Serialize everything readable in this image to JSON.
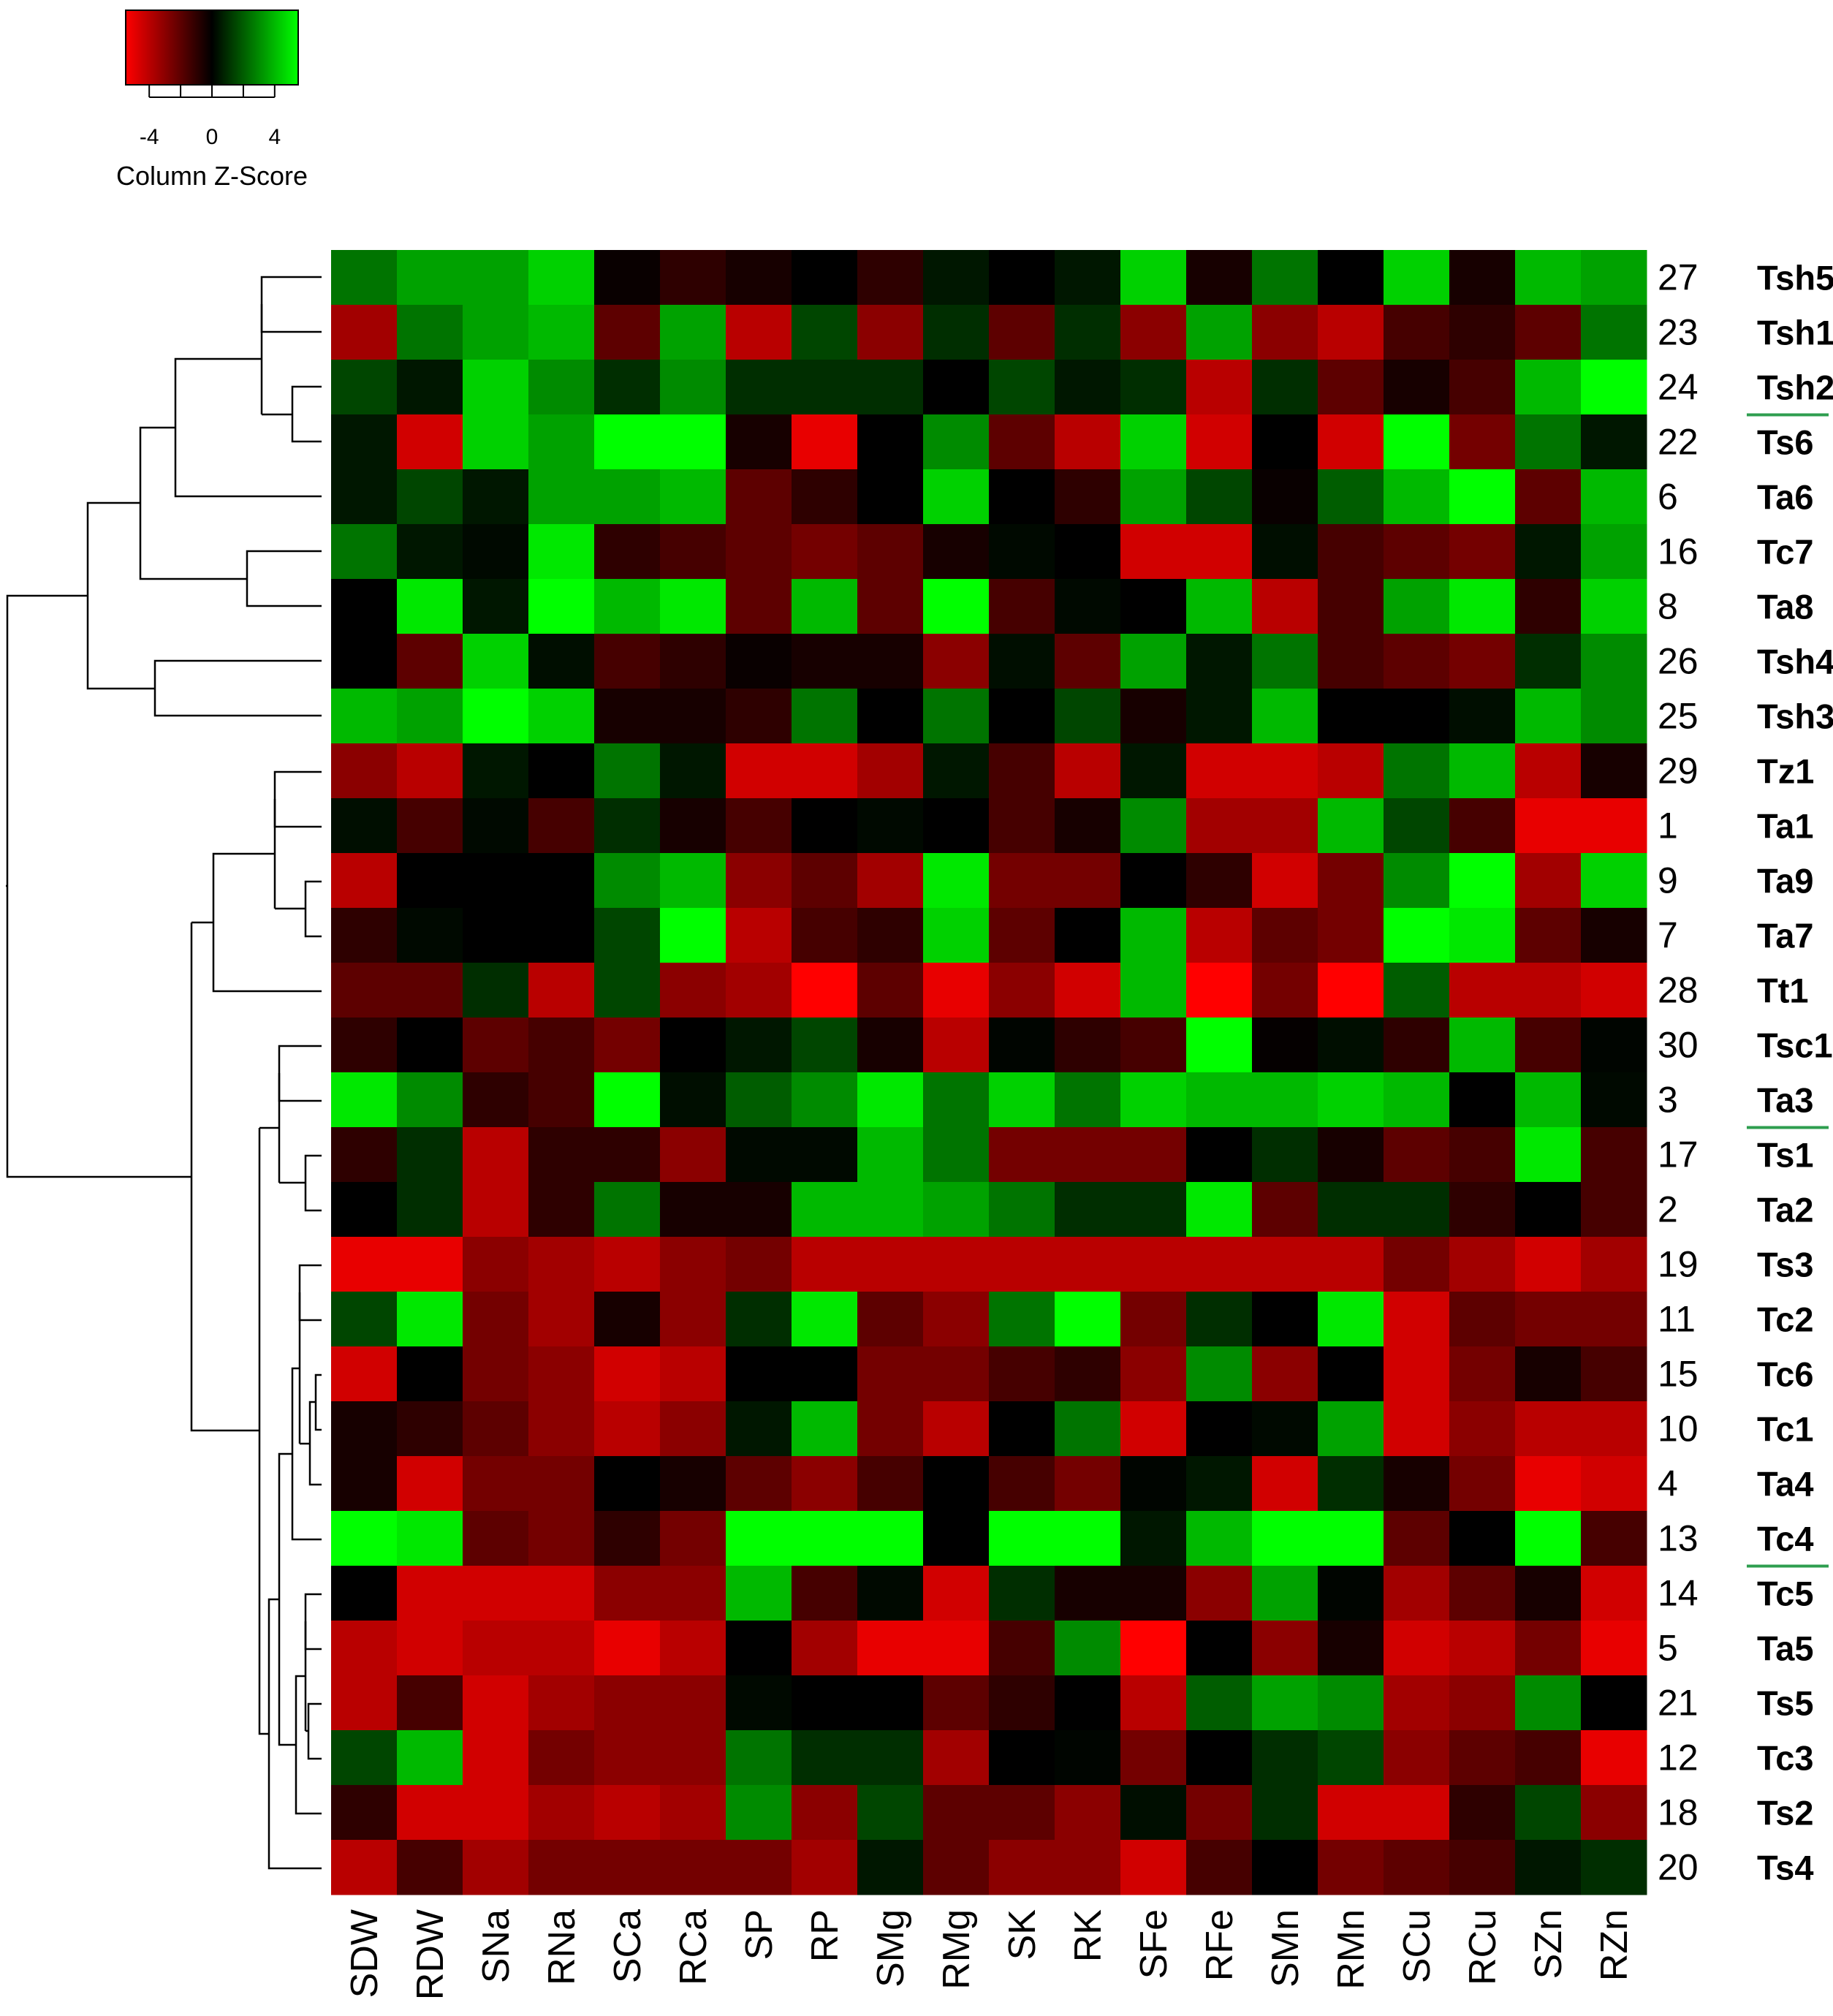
{
  "chart_data": {
    "type": "heatmap",
    "color_key": {
      "title": "Column Z-Score",
      "ticks": [
        "-4",
        "0",
        "4"
      ],
      "tick_values": [
        -4,
        0,
        4
      ],
      "range": [
        -5.5,
        5.5
      ],
      "colors": {
        "low": "#ff0000",
        "mid": "#000000",
        "high": "#00ff00"
      }
    },
    "columns": [
      "SDW",
      "RDW",
      "SNa",
      "RNa",
      "SCa",
      "RCa",
      "SP",
      "RP",
      "SMg",
      "RMg",
      "SK",
      "RK",
      "SFe",
      "RFe",
      "SMn",
      "RMn",
      "SCu",
      "RCu",
      "SZn",
      "RZn"
    ],
    "rows": [
      {
        "num": "27",
        "name": "Tsh5",
        "underline": false
      },
      {
        "num": "23",
        "name": "Tsh1",
        "underline": false
      },
      {
        "num": "24",
        "name": "Tsh2",
        "underline": true
      },
      {
        "num": "22",
        "name": "Ts6",
        "underline": false
      },
      {
        "num": "6",
        "name": "Ta6",
        "underline": false
      },
      {
        "num": "16",
        "name": "Tc7",
        "underline": false
      },
      {
        "num": "8",
        "name": "Ta8",
        "underline": false
      },
      {
        "num": "26",
        "name": "Tsh4",
        "underline": false
      },
      {
        "num": "25",
        "name": "Tsh3",
        "underline": false
      },
      {
        "num": "29",
        "name": "Tz1",
        "underline": false
      },
      {
        "num": "1",
        "name": "Ta1",
        "underline": false
      },
      {
        "num": "9",
        "name": "Ta9",
        "underline": false
      },
      {
        "num": "7",
        "name": "Ta7",
        "underline": false
      },
      {
        "num": "28",
        "name": "Tt1",
        "underline": false
      },
      {
        "num": "30",
        "name": "Tsc1",
        "underline": false
      },
      {
        "num": "3",
        "name": "Ta3",
        "underline": true
      },
      {
        "num": "17",
        "name": "Ts1",
        "underline": false
      },
      {
        "num": "2",
        "name": "Ta2",
        "underline": false
      },
      {
        "num": "19",
        "name": "Ts3",
        "underline": false
      },
      {
        "num": "11",
        "name": "Tc2",
        "underline": false
      },
      {
        "num": "15",
        "name": "Tc6",
        "underline": false
      },
      {
        "num": "10",
        "name": "Tc1",
        "underline": false
      },
      {
        "num": "4",
        "name": "Ta4",
        "underline": false
      },
      {
        "num": "13",
        "name": "Tc4",
        "underline": true
      },
      {
        "num": "14",
        "name": "Tc5",
        "underline": false
      },
      {
        "num": "5",
        "name": "Ta5",
        "underline": false
      },
      {
        "num": "21",
        "name": "Ts5",
        "underline": false
      },
      {
        "num": "12",
        "name": "Tc3",
        "underline": false
      },
      {
        "num": "18",
        "name": "Ts2",
        "underline": false
      },
      {
        "num": "20",
        "name": "Ts4",
        "underline": false
      }
    ],
    "values": [
      [
        2.5,
        3.5,
        3.5,
        4.5,
        -0.2,
        -1,
        -0.5,
        0,
        -1,
        0.5,
        0,
        0.5,
        4.5,
        -0.5,
        2.5,
        0,
        4.5,
        -0.5,
        4,
        3.5
      ],
      [
        -3.5,
        2.5,
        3.5,
        4,
        -2,
        3.5,
        -4,
        1.5,
        -3,
        1,
        -2,
        1,
        -3,
        3.5,
        -3,
        -4,
        -1.5,
        -1,
        -2,
        2.5
      ],
      [
        1.5,
        0.5,
        4.5,
        3,
        1,
        3,
        1,
        1,
        1,
        0,
        1.5,
        0.5,
        1,
        -4,
        1,
        -2,
        -0.5,
        -1.5,
        4,
        6
      ],
      [
        0.5,
        -4.5,
        4.5,
        3.5,
        6.5,
        6,
        -0.5,
        -5,
        0,
        3,
        -2,
        -4,
        4.5,
        -4.5,
        0,
        -4.5,
        6,
        -2.5,
        2.5,
        0.5
      ],
      [
        0.5,
        1.5,
        0.5,
        3.5,
        3.5,
        4,
        -2,
        -1,
        0,
        4.5,
        0,
        -1,
        3.5,
        1.5,
        -0.2,
        2,
        4,
        5.5,
        -2,
        4
      ],
      [
        2.5,
        0.5,
        0.2,
        5,
        -1,
        -1.5,
        -2,
        -2.5,
        -2,
        -0.5,
        0.2,
        0,
        -4.5,
        -4.5,
        0.3,
        -1.5,
        -2,
        -2.5,
        0.5,
        3.5
      ],
      [
        0,
        5,
        0.5,
        5.5,
        4,
        5,
        -2,
        4,
        -2,
        5.5,
        -1.5,
        0.2,
        0,
        4,
        -4,
        -1.5,
        3.5,
        5,
        -1,
        4.5
      ],
      [
        0,
        -2,
        4.5,
        0.3,
        -1.5,
        -1,
        -0.2,
        -0.5,
        -0.5,
        -3,
        0.3,
        -2,
        3.5,
        0.5,
        2.5,
        -1.5,
        -2,
        -2.5,
        1,
        3
      ],
      [
        4,
        3.5,
        5.5,
        4.5,
        -0.5,
        -0.5,
        -1,
        2.5,
        0,
        2.5,
        0,
        1.5,
        -0.5,
        0.5,
        4,
        0,
        0,
        0.3,
        4,
        3
      ],
      [
        -3,
        -4,
        0.5,
        0,
        2.5,
        0.5,
        -4.5,
        -4.5,
        -3.5,
        0.5,
        -1.5,
        -4,
        0.5,
        -4.5,
        -4.5,
        -4,
        2.5,
        4,
        -4,
        -0.5
      ],
      [
        0.3,
        -1.5,
        0.2,
        -1.5,
        1,
        -0.5,
        -1.5,
        0,
        0.2,
        0,
        -1.5,
        -0.5,
        3,
        -3.5,
        -3.5,
        4,
        1.5,
        -1.5,
        -5,
        -5
      ],
      [
        -4,
        0,
        0,
        0,
        3,
        4,
        -3,
        -2,
        -3.5,
        5,
        -2.5,
        -2.5,
        0,
        -1,
        -4.5,
        -2.5,
        3,
        6,
        -3.5,
        4.5
      ],
      [
        -1,
        0.2,
        0,
        0,
        1.5,
        5.5,
        -4,
        -1.5,
        -1,
        4.5,
        -2,
        0,
        4,
        -4,
        -2,
        -2.5,
        5.5,
        5,
        -2,
        -0.5
      ],
      [
        -2,
        -2,
        1,
        -4,
        1.5,
        -3,
        -3.5,
        -6,
        -2,
        -5,
        -3,
        -4.5,
        4,
        -5.5,
        -2.5,
        -5.5,
        2,
        -4,
        -4,
        -4.5
      ],
      [
        -1,
        0,
        -2,
        -1.5,
        -2.5,
        0,
        0.5,
        1.5,
        -0.5,
        -4,
        0.1,
        -1,
        -1.5,
        6,
        -0.1,
        0.3,
        -1,
        4,
        -1.5,
        0.1
      ],
      [
        5,
        3,
        -1,
        -1.5,
        5.5,
        0.3,
        2,
        3,
        5,
        2.5,
        4.5,
        2.5,
        4.5,
        4,
        4,
        4.5,
        4,
        0,
        4,
        0.2
      ],
      [
        -1,
        1,
        -4,
        -1,
        -1,
        -3,
        0.2,
        0.2,
        4,
        2.5,
        -2.5,
        -2.5,
        -2.5,
        0,
        1,
        -0.5,
        -2,
        -1.5,
        5,
        -1.5
      ],
      [
        0,
        1,
        -4,
        -1,
        2.5,
        -0.5,
        -0.5,
        4,
        4,
        3.5,
        2.5,
        1,
        1,
        5,
        -2,
        1,
        1,
        -1,
        0,
        -1.5
      ],
      [
        -5,
        -5,
        -3,
        -3.5,
        -4,
        -3,
        -2.5,
        -4,
        -4,
        -4,
        -4,
        -4,
        -4,
        -4,
        -4,
        -4,
        -2.5,
        -3.5,
        -4.5,
        -3.5
      ],
      [
        1.5,
        5,
        -2.5,
        -3.5,
        -0.5,
        -3,
        1,
        5,
        -2,
        -3,
        2.5,
        7,
        -2.5,
        1,
        0,
        5,
        -4.5,
        -2,
        -2.5,
        -2.5
      ],
      [
        -4.5,
        0,
        -2.5,
        -3,
        -4.5,
        -4,
        0,
        0,
        -2.5,
        -2.5,
        -1.5,
        -1,
        -3,
        3,
        -3,
        0,
        -4.5,
        -2.5,
        -0.5,
        -1.5
      ],
      [
        -0.5,
        -1,
        -2,
        -3,
        -4,
        -3,
        0.5,
        4,
        -2.5,
        -4,
        0,
        2.5,
        -4.5,
        0,
        0.2,
        3.5,
        -4.5,
        -3,
        -4,
        -4
      ],
      [
        -0.5,
        -4.5,
        -2.5,
        -2.5,
        0,
        -0.5,
        -2,
        -3,
        -1.5,
        0,
        -1.5,
        -2.5,
        0.1,
        0.5,
        -4.5,
        1,
        -0.5,
        -2.5,
        -5,
        -4.5
      ],
      [
        6.5,
        5,
        -2,
        -2.5,
        -1,
        -2.5,
        7,
        6,
        6,
        0,
        7.5,
        5.5,
        0.5,
        4,
        6.5,
        6,
        -2,
        0,
        5.5,
        -1.5
      ],
      [
        0,
        -4.5,
        -4.5,
        -4.5,
        -3,
        -3,
        4,
        -1.5,
        0.2,
        -4.5,
        1,
        -0.5,
        -0.5,
        -3,
        3.5,
        0.1,
        -3.5,
        -2,
        -0.5,
        -4.5
      ],
      [
        -4,
        -4.5,
        -4,
        -4,
        -5,
        -4,
        0,
        -3.5,
        -5,
        -5,
        -1.5,
        3,
        -6,
        0,
        -3,
        -0.5,
        -4.5,
        -4,
        -2.5,
        -5
      ],
      [
        -4,
        -1.5,
        -4.5,
        -3.5,
        -3,
        -3,
        0.2,
        0,
        0,
        -2,
        -1,
        0,
        -4,
        2,
        3.5,
        3,
        -3.5,
        -3,
        3,
        0
      ],
      [
        1.5,
        4,
        -4.5,
        -2.5,
        -3,
        -3,
        2.5,
        1,
        1,
        -3.5,
        0,
        0.1,
        -2.5,
        0,
        1,
        1.5,
        -3,
        -2,
        -1.5,
        -5
      ],
      [
        -1,
        -4.5,
        -4.5,
        -3.5,
        -4,
        -3.5,
        3,
        -3,
        1.5,
        -2,
        -2,
        -3,
        0.3,
        -2.5,
        1,
        -4.5,
        -4.5,
        -1,
        1.5,
        -3
      ],
      [
        -4,
        -1.5,
        -3.5,
        -2.5,
        -2.5,
        -2.5,
        -2.5,
        -3.5,
        0.5,
        -2,
        -3,
        -3,
        -4.5,
        -1.5,
        0,
        -2.5,
        -2,
        -1.5,
        0.5,
        1
      ]
    ]
  }
}
